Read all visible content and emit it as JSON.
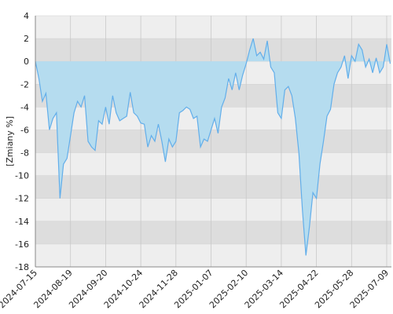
{
  "chart_data": {
    "type": "area",
    "y_label": "[Zmiany %]",
    "categories": [
      "2024-07-15",
      null,
      null,
      null,
      null,
      null,
      null,
      null,
      null,
      null,
      "2024-08-19",
      null,
      null,
      null,
      null,
      null,
      null,
      null,
      null,
      null,
      "2024-09-20",
      null,
      null,
      null,
      null,
      null,
      null,
      null,
      null,
      null,
      "2024-10-24",
      null,
      null,
      null,
      null,
      null,
      null,
      null,
      null,
      null,
      "2024-11-28",
      null,
      null,
      null,
      null,
      null,
      null,
      null,
      null,
      null,
      "2025-01-07",
      null,
      null,
      null,
      null,
      null,
      null,
      null,
      null,
      null,
      "2025-02-10",
      null,
      null,
      null,
      null,
      null,
      null,
      null,
      null,
      null,
      "2025-03-14",
      null,
      null,
      null,
      null,
      null,
      null,
      null,
      null,
      null,
      "2025-04-22",
      null,
      null,
      null,
      null,
      null,
      null,
      null,
      null,
      null,
      "2025-05-28",
      null,
      null,
      null,
      null,
      null,
      null,
      null,
      null,
      null,
      "2025-07-09",
      null
    ],
    "values": [
      0,
      -1.5,
      -3.5,
      -2.8,
      -6,
      -5,
      -4.5,
      -12,
      -9,
      -8.5,
      -6.5,
      -4.5,
      -3.5,
      -4,
      -3,
      -7,
      -7.5,
      -7.8,
      -5.2,
      -5.5,
      -4,
      -5.5,
      -3,
      -4.5,
      -5.2,
      -5,
      -4.8,
      -2.7,
      -4.5,
      -4.8,
      -5.4,
      -5.5,
      -7.5,
      -6.5,
      -7,
      -5.5,
      -7,
      -8.8,
      -6.8,
      -7.5,
      -7,
      -4.5,
      -4.3,
      -4,
      -4.2,
      -5,
      -4.8,
      -7.5,
      -6.8,
      -7,
      -6,
      -5,
      -6.3,
      -4,
      -3.2,
      -1.5,
      -2.5,
      -1,
      -2.5,
      -1.2,
      -0.2,
      1,
      2,
      0.5,
      0.8,
      0.2,
      1.8,
      -0.5,
      -1,
      -4.5,
      -5,
      -2.5,
      -2.2,
      -3,
      -5,
      -8,
      -13,
      -17,
      -14.5,
      -11.5,
      -12,
      -9,
      -7,
      -4.8,
      -4.2,
      -2,
      -1,
      -0.5,
      0.5,
      -1.5,
      0.5,
      0,
      1.5,
      1,
      -0.5,
      0.2,
      -1,
      0.3,
      -1,
      -0.5,
      1.5,
      -0.2
    ],
    "line_color": "#62aeea",
    "fill_color": "#b5dcef",
    "ylim": [
      -18,
      4
    ],
    "yticks": [
      4,
      2,
      0,
      -2,
      -4,
      -6,
      -8,
      -10,
      -12,
      -14,
      -16,
      -18
    ],
    "grid": true
  }
}
